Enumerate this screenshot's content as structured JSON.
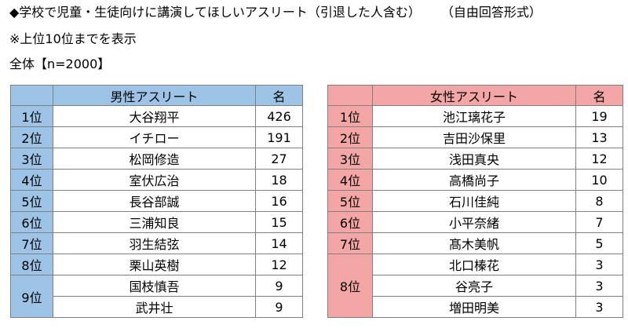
{
  "title": "◆学校で児童・生徒向けに講演してほしいアスリート（引退した人含む）",
  "format": "（自由回答形式）",
  "note": "※上位10位までを表示",
  "sample": "全体【n=2000】",
  "male": {
    "header": "男性アスリート",
    "count_header": "名",
    "rows": [
      {
        "rank": "1位",
        "name": "大谷翔平",
        "count": "426"
      },
      {
        "rank": "2位",
        "name": "イチロー",
        "count": "191"
      },
      {
        "rank": "3位",
        "name": "松岡修造",
        "count": "27"
      },
      {
        "rank": "4位",
        "name": "室伏広治",
        "count": "18"
      },
      {
        "rank": "5位",
        "name": "長谷部誠",
        "count": "16"
      },
      {
        "rank": "6位",
        "name": "三浦知良",
        "count": "15"
      },
      {
        "rank": "7位",
        "name": "羽生結弦",
        "count": "14"
      },
      {
        "rank": "8位",
        "name": "栗山英樹",
        "count": "12"
      },
      {
        "rank": "9位",
        "name": "国枝慎吾",
        "count": "9"
      },
      {
        "rank": "",
        "name": "武井壮",
        "count": "9"
      }
    ]
  },
  "female": {
    "header": "女性アスリート",
    "count_header": "名",
    "rows": [
      {
        "rank": "1位",
        "name": "池江璃花子",
        "count": "19"
      },
      {
        "rank": "2位",
        "name": "吉田沙保里",
        "count": "13"
      },
      {
        "rank": "3位",
        "name": "浅田真央",
        "count": "12"
      },
      {
        "rank": "4位",
        "name": "高橋尚子",
        "count": "10"
      },
      {
        "rank": "5位",
        "name": "石川佳純",
        "count": "8"
      },
      {
        "rank": "6位",
        "name": "小平奈緒",
        "count": "7"
      },
      {
        "rank": "7位",
        "name": "髙木美帆",
        "count": "5"
      },
      {
        "rank": "8位",
        "name": "北口榛花",
        "count": "3"
      },
      {
        "rank": "",
        "name": "谷亮子",
        "count": "3"
      },
      {
        "rank": "",
        "name": "増田明美",
        "count": "3"
      }
    ]
  }
}
